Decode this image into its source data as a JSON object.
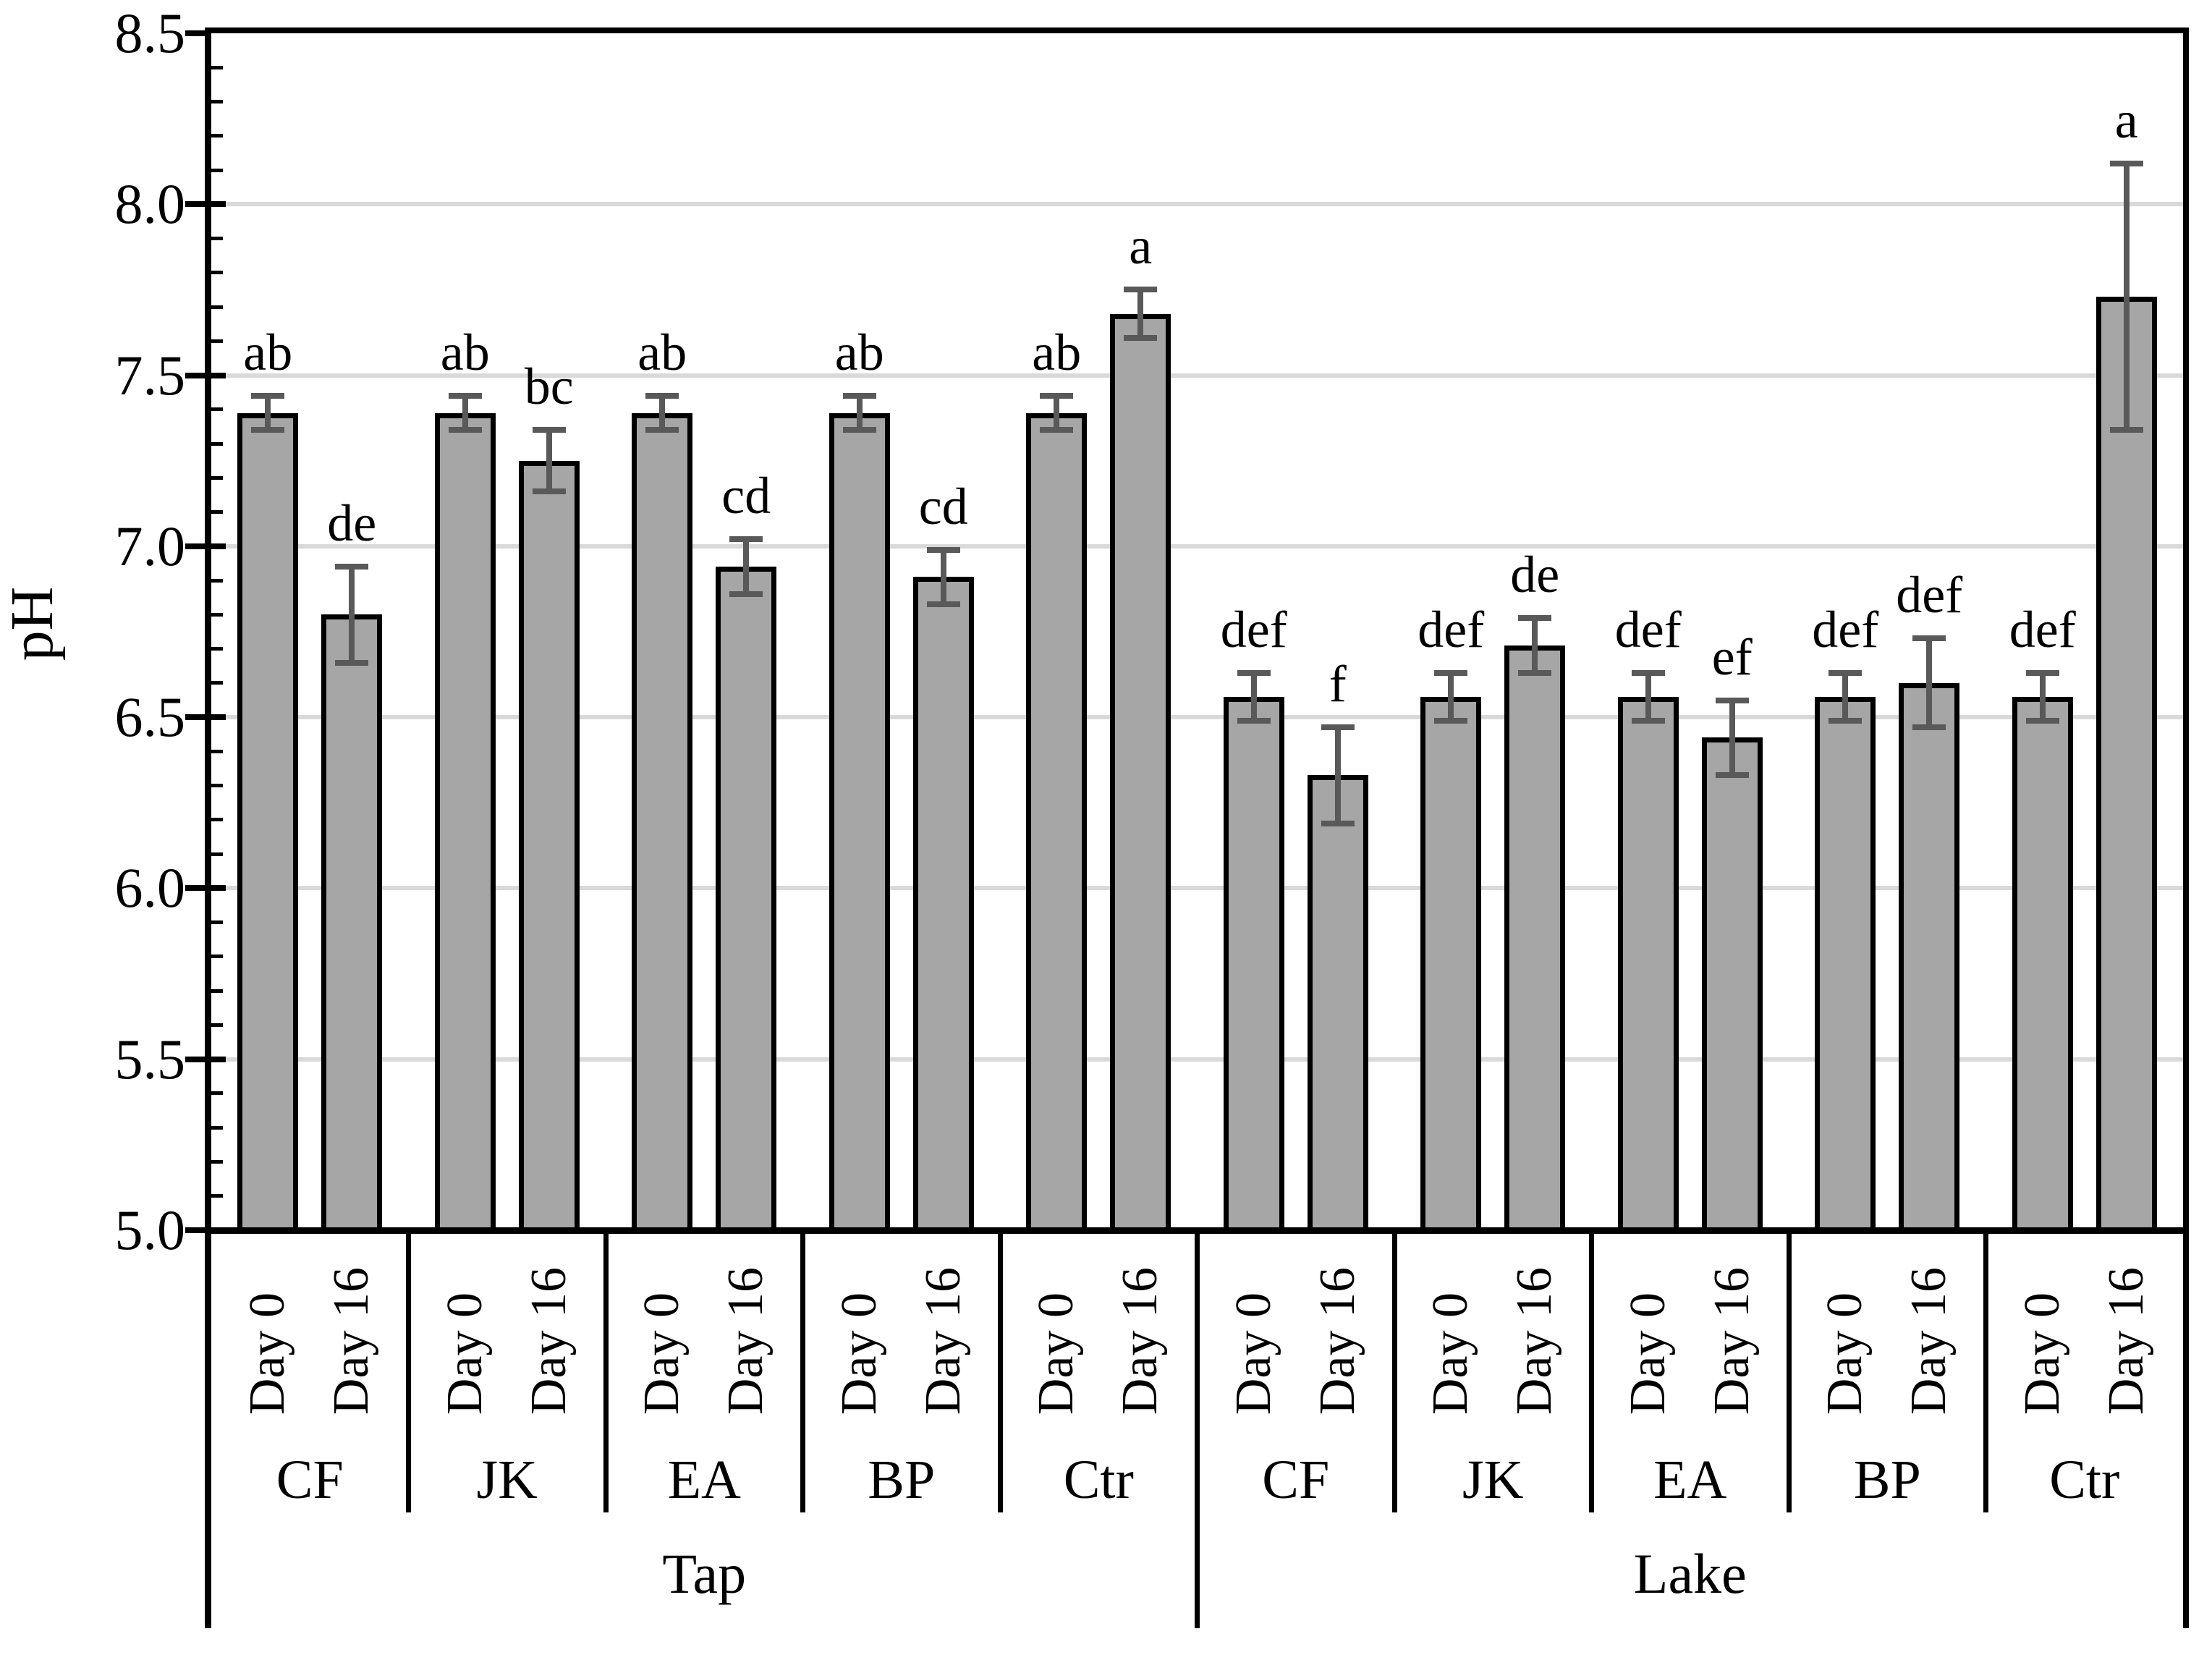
{
  "chart_data": {
    "type": "bar",
    "title": "",
    "ylabel": "pH",
    "xlabel": "",
    "ylim": [
      5.0,
      8.5
    ],
    "y_major_tick": 0.5,
    "y_minor_tick": 0.1,
    "grid": "horizontal",
    "legend": "none",
    "y_tick_labels": [
      "5.0",
      "5.5",
      "6.0",
      "6.5",
      "7.0",
      "7.5",
      "8.0",
      "8.5"
    ],
    "sections": [
      "Tap",
      "Lake"
    ],
    "groups": [
      "CF",
      "JK",
      "EA",
      "BP",
      "Ctr"
    ],
    "day_labels": [
      "Day 0",
      "Day 16"
    ],
    "bars": [
      {
        "section": "Tap",
        "group": "CF",
        "day": "Day 0",
        "value": 7.39,
        "error": 0.05,
        "letter": "ab"
      },
      {
        "section": "Tap",
        "group": "CF",
        "day": "Day 16",
        "value": 6.8,
        "error": 0.14,
        "letter": "de"
      },
      {
        "section": "Tap",
        "group": "JK",
        "day": "Day 0",
        "value": 7.39,
        "error": 0.05,
        "letter": "ab"
      },
      {
        "section": "Tap",
        "group": "JK",
        "day": "Day 16",
        "value": 7.25,
        "error": 0.09,
        "letter": "bc"
      },
      {
        "section": "Tap",
        "group": "EA",
        "day": "Day 0",
        "value": 7.39,
        "error": 0.05,
        "letter": "ab"
      },
      {
        "section": "Tap",
        "group": "EA",
        "day": "Day 16",
        "value": 6.94,
        "error": 0.08,
        "letter": "cd"
      },
      {
        "section": "Tap",
        "group": "BP",
        "day": "Day 0",
        "value": 7.39,
        "error": 0.05,
        "letter": "ab"
      },
      {
        "section": "Tap",
        "group": "BP",
        "day": "Day 16",
        "value": 6.91,
        "error": 0.08,
        "letter": "cd"
      },
      {
        "section": "Tap",
        "group": "Ctr",
        "day": "Day 0",
        "value": 7.39,
        "error": 0.05,
        "letter": "ab"
      },
      {
        "section": "Tap",
        "group": "Ctr",
        "day": "Day 16",
        "value": 7.68,
        "error": 0.07,
        "letter": "a"
      },
      {
        "section": "Lake",
        "group": "CF",
        "day": "Day 0",
        "value": 6.56,
        "error": 0.07,
        "letter": "def"
      },
      {
        "section": "Lake",
        "group": "CF",
        "day": "Day 16",
        "value": 6.33,
        "error": 0.14,
        "letter": "f"
      },
      {
        "section": "Lake",
        "group": "JK",
        "day": "Day 0",
        "value": 6.56,
        "error": 0.07,
        "letter": "def"
      },
      {
        "section": "Lake",
        "group": "JK",
        "day": "Day 16",
        "value": 6.71,
        "error": 0.08,
        "letter": "de"
      },
      {
        "section": "Lake",
        "group": "EA",
        "day": "Day 0",
        "value": 6.56,
        "error": 0.07,
        "letter": "def"
      },
      {
        "section": "Lake",
        "group": "EA",
        "day": "Day 16",
        "value": 6.44,
        "error": 0.11,
        "letter": "ef"
      },
      {
        "section": "Lake",
        "group": "BP",
        "day": "Day 0",
        "value": 6.56,
        "error": 0.07,
        "letter": "def"
      },
      {
        "section": "Lake",
        "group": "BP",
        "day": "Day 16",
        "value": 6.6,
        "error": 0.13,
        "letter": "def"
      },
      {
        "section": "Lake",
        "group": "Ctr",
        "day": "Day 0",
        "value": 6.56,
        "error": 0.07,
        "letter": "def"
      },
      {
        "section": "Lake",
        "group": "Ctr",
        "day": "Day 16",
        "value": 7.73,
        "error": 0.39,
        "letter": "a"
      }
    ],
    "colors": {
      "bar_fill": "#a6a6a6",
      "bar_border": "#000000",
      "error_bar": "#595959",
      "gridline": "#d9d9d9",
      "axis": "#000000",
      "background": "#ffffff"
    }
  }
}
